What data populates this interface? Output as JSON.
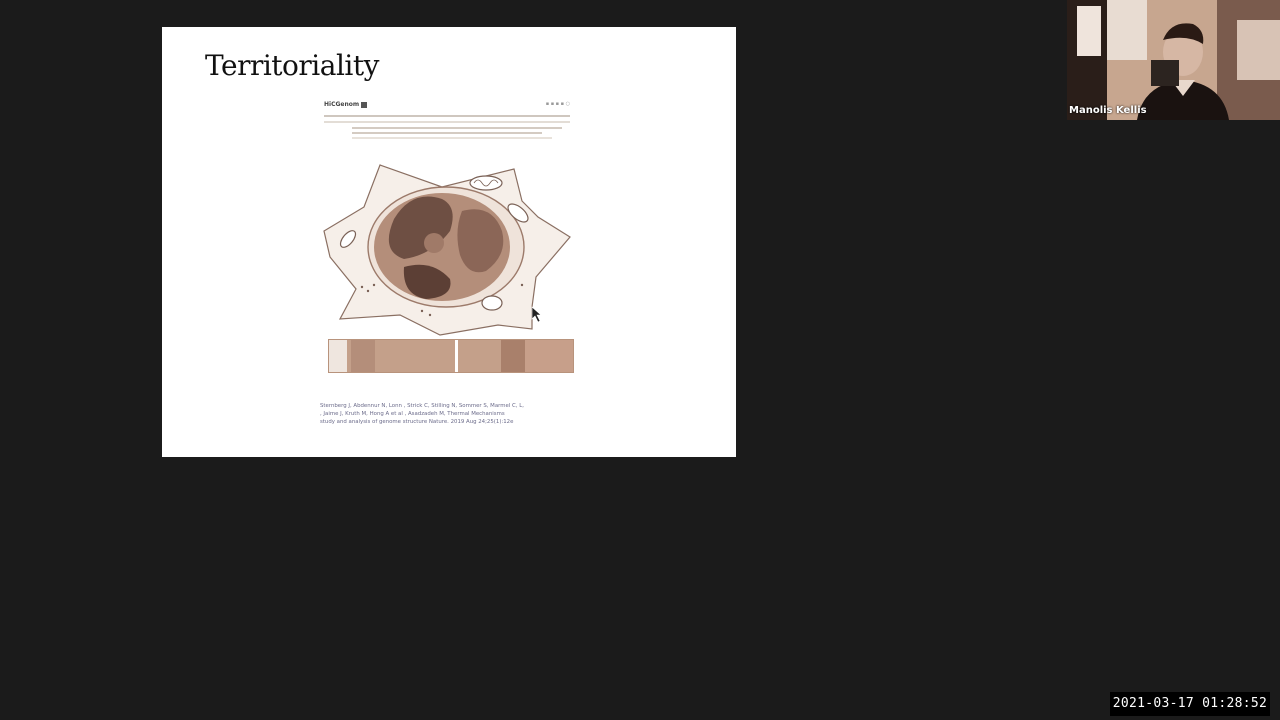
{
  "slide": {
    "title": "Territoriality",
    "figure": {
      "journal_logo": "HiCGenom",
      "citation_authors": "Sternberg J, Abdennur N, Lonn  , Strick C, Stilling N, Sommer S, Marmel C, L,",
      "citation_line2": "     , Jaime J, Kruth M, Hong A et al  , Asadzadeh M, Thermal Mechanisms",
      "citation_line3": "  study and analysis of genome structure    Nature. 2019 Aug 24;25(1):12e"
    }
  },
  "video": {
    "participant_name": "Manolis Kellis"
  },
  "recording": {
    "timestamp": "2021-03-17  01:28:52"
  },
  "colors": {
    "background": "#1b1b1b",
    "slide_bg": "#ffffff",
    "accent_tan": "#c4a08a",
    "nucleus_dark": "#6e4f43"
  }
}
